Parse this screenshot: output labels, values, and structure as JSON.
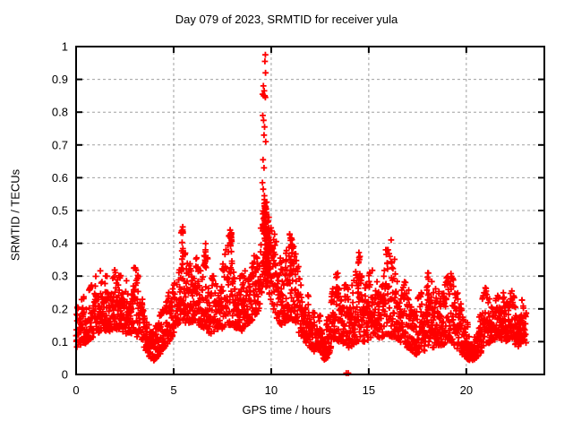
{
  "chart_data": {
    "type": "scatter",
    "title": "Day 079 of 2023, SRMTID for receiver yula",
    "xlabel": "GPS time / hours",
    "ylabel": "SRMTID / TECUs",
    "xlim": [
      0,
      24
    ],
    "ylim": [
      0,
      1
    ],
    "xticks": [
      0,
      5,
      10,
      15,
      20
    ],
    "yticks": [
      0,
      0.1,
      0.2,
      0.3,
      0.4,
      0.5,
      0.6,
      0.7,
      0.8,
      0.9,
      1
    ],
    "ytick_labels": [
      "0",
      "0.1",
      "0.2",
      "0.3",
      "0.4",
      "0.5",
      "0.6",
      "0.7",
      "0.8",
      "0.9",
      "1"
    ],
    "grid": {
      "show": true,
      "color": "#a0a0a0",
      "style": "dashed"
    },
    "legend": {
      "show": false
    },
    "background": "#ffffff",
    "border_color": "#000000",
    "series": [
      {
        "name": "SRMTID",
        "marker": "plus",
        "color": "#ff0000",
        "t_start": 0,
        "t_end": 23.08,
        "cadence_hours": 0.008333,
        "envelope": [
          [
            0.0,
            0.08,
            0.2
          ],
          [
            0.3,
            0.09,
            0.23
          ],
          [
            0.7,
            0.1,
            0.26
          ],
          [
            1.0,
            0.12,
            0.3
          ],
          [
            1.3,
            0.13,
            0.32
          ],
          [
            1.7,
            0.13,
            0.3
          ],
          [
            2.0,
            0.14,
            0.32
          ],
          [
            2.3,
            0.13,
            0.3
          ],
          [
            2.7,
            0.12,
            0.28
          ],
          [
            3.0,
            0.12,
            0.33
          ],
          [
            3.3,
            0.1,
            0.28
          ],
          [
            3.6,
            0.07,
            0.2
          ],
          [
            3.9,
            0.04,
            0.13
          ],
          [
            4.2,
            0.05,
            0.16
          ],
          [
            4.5,
            0.08,
            0.22
          ],
          [
            4.8,
            0.1,
            0.26
          ],
          [
            5.1,
            0.13,
            0.32
          ],
          [
            5.4,
            0.16,
            0.44
          ],
          [
            5.7,
            0.15,
            0.4
          ],
          [
            6.0,
            0.16,
            0.38
          ],
          [
            6.3,
            0.15,
            0.35
          ],
          [
            6.6,
            0.14,
            0.4
          ],
          [
            6.9,
            0.12,
            0.3
          ],
          [
            7.2,
            0.13,
            0.3
          ],
          [
            7.5,
            0.14,
            0.33
          ],
          [
            7.9,
            0.15,
            0.44
          ],
          [
            8.2,
            0.14,
            0.32
          ],
          [
            8.5,
            0.13,
            0.3
          ],
          [
            8.8,
            0.15,
            0.33
          ],
          [
            9.1,
            0.17,
            0.38
          ],
          [
            9.4,
            0.2,
            0.42
          ],
          [
            9.6,
            0.25,
            0.5
          ],
          [
            9.8,
            0.27,
            0.5
          ],
          [
            10.0,
            0.22,
            0.48
          ],
          [
            10.2,
            0.18,
            0.42
          ],
          [
            10.5,
            0.15,
            0.36
          ],
          [
            10.8,
            0.16,
            0.38
          ],
          [
            11.0,
            0.17,
            0.4
          ],
          [
            11.3,
            0.14,
            0.38
          ],
          [
            11.6,
            0.11,
            0.3
          ],
          [
            12.0,
            0.08,
            0.22
          ],
          [
            12.4,
            0.06,
            0.19
          ],
          [
            12.8,
            0.04,
            0.15
          ],
          [
            13.1,
            0.08,
            0.24
          ],
          [
            13.4,
            0.1,
            0.35
          ],
          [
            13.7,
            0.09,
            0.28
          ],
          [
            14.0,
            0.08,
            0.26
          ],
          [
            14.4,
            0.1,
            0.36
          ],
          [
            14.7,
            0.1,
            0.32
          ],
          [
            15.0,
            0.1,
            0.3
          ],
          [
            15.3,
            0.12,
            0.36
          ],
          [
            15.6,
            0.11,
            0.38
          ],
          [
            16.0,
            0.12,
            0.38
          ],
          [
            16.3,
            0.11,
            0.36
          ],
          [
            16.6,
            0.1,
            0.34
          ],
          [
            17.0,
            0.08,
            0.28
          ],
          [
            17.4,
            0.06,
            0.22
          ],
          [
            17.8,
            0.07,
            0.26
          ],
          [
            18.1,
            0.08,
            0.32
          ],
          [
            18.4,
            0.08,
            0.26
          ],
          [
            18.8,
            0.09,
            0.28
          ],
          [
            19.2,
            0.1,
            0.31
          ],
          [
            19.5,
            0.08,
            0.26
          ],
          [
            19.8,
            0.06,
            0.2
          ],
          [
            20.2,
            0.04,
            0.16
          ],
          [
            20.6,
            0.05,
            0.18
          ],
          [
            21.0,
            0.09,
            0.27
          ],
          [
            21.3,
            0.1,
            0.26
          ],
          [
            21.6,
            0.11,
            0.24
          ],
          [
            22.0,
            0.1,
            0.27
          ],
          [
            22.3,
            0.11,
            0.26
          ],
          [
            22.6,
            0.08,
            0.21
          ],
          [
            22.9,
            0.1,
            0.23
          ],
          [
            23.1,
            0.09,
            0.2
          ]
        ],
        "spike_points": [
          [
            9.7,
            0.975
          ],
          [
            9.68,
            0.955
          ],
          [
            9.71,
            0.92
          ],
          [
            9.6,
            0.88
          ],
          [
            9.64,
            0.865
          ],
          [
            9.56,
            0.855
          ],
          [
            9.62,
            0.85
          ],
          [
            9.67,
            0.85
          ],
          [
            9.7,
            0.845
          ],
          [
            9.57,
            0.79
          ],
          [
            9.61,
            0.775
          ],
          [
            9.66,
            0.755
          ],
          [
            9.63,
            0.73
          ],
          [
            9.72,
            0.71
          ],
          [
            9.58,
            0.655
          ],
          [
            9.63,
            0.63
          ],
          [
            9.55,
            0.585
          ],
          [
            9.59,
            0.565
          ],
          [
            9.65,
            0.545
          ],
          [
            16.15,
            0.41
          ]
        ],
        "clusters": [
          {
            "t": 9.68,
            "dt": 0.1,
            "lo": 0.46,
            "hi": 0.535,
            "n": 26
          },
          {
            "t": 9.78,
            "dt": 0.16,
            "lo": 0.3,
            "hi": 0.47,
            "n": 50
          },
          {
            "t": 11.0,
            "dt": 0.09,
            "lo": 0.34,
            "hi": 0.43,
            "n": 20
          },
          {
            "t": 5.45,
            "dt": 0.05,
            "lo": 0.3,
            "hi": 0.455,
            "n": 12
          },
          {
            "t": 7.93,
            "dt": 0.04,
            "lo": 0.3,
            "hi": 0.45,
            "n": 12
          },
          {
            "t": 6.62,
            "dt": 0.03,
            "lo": 0.28,
            "hi": 0.42,
            "n": 8
          },
          {
            "t": 14.5,
            "dt": 0.05,
            "lo": 0.25,
            "hi": 0.4,
            "n": 10
          },
          {
            "t": 18.05,
            "dt": 0.04,
            "lo": 0.22,
            "hi": 0.33,
            "n": 8
          }
        ],
        "low_outliers": [
          [
            13.85,
            0.004
          ],
          [
            13.95,
            0.004
          ]
        ]
      }
    ]
  }
}
